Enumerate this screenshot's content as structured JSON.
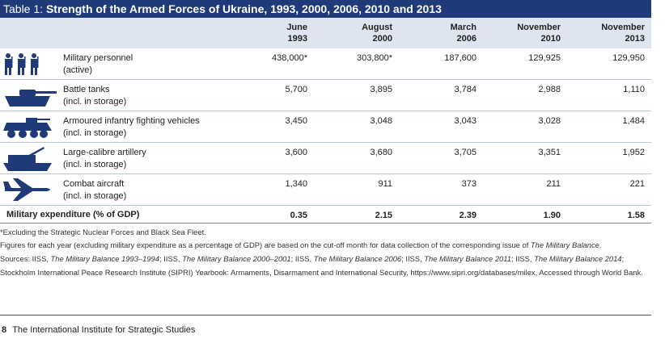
{
  "title_label": "Table 1:",
  "title": "Strength of the Armed Forces of Ukraine, 1993, 2000, 2006, 2010 and 2013",
  "columns": [
    {
      "month": "June",
      "year": "1993"
    },
    {
      "month": "August",
      "year": "2000"
    },
    {
      "month": "March",
      "year": "2006"
    },
    {
      "month": "November",
      "year": "2010"
    },
    {
      "month": "November",
      "year": "2013"
    }
  ],
  "rows": [
    {
      "label": "Military personnel",
      "sublabel": "(active)",
      "values": [
        "438,000*",
        "303,800*",
        "187,600",
        "129,925",
        "129,950"
      ]
    },
    {
      "label": "Battle tanks",
      "sublabel": "(incl. in storage)",
      "values": [
        "5,700",
        "3,895",
        "3,784",
        "2,988",
        "1,110"
      ]
    },
    {
      "label": "Armoured infantry fighting vehicles",
      "sublabel": "(incl. in storage)",
      "values": [
        "3,450",
        "3,048",
        "3,043",
        "3,028",
        "1,484"
      ]
    },
    {
      "label": "Large-calibre artillery",
      "sublabel": "(incl. in storage)",
      "values": [
        "3,600",
        "3,680",
        "3,705",
        "3,351",
        "1,952"
      ]
    },
    {
      "label": "Combat aircraft",
      "sublabel": "(incl. in storage)",
      "values": [
        "1,340",
        "911",
        "373",
        "211",
        "221"
      ]
    }
  ],
  "expenditure": {
    "label": "Military expenditure (% of GDP)",
    "values": [
      "0.35",
      "2.15",
      "2.39",
      "1.90",
      "1.58"
    ]
  },
  "notes": [
    [
      {
        "text": "*Excluding the Strategic Nuclear Forces and Black Sea Fleet."
      }
    ],
    [
      {
        "text": "Figures for each year (excluding military expenditure as a percentage of GDP) are based on the cut-off month for data collection of the corresponding issue of "
      },
      {
        "text": "The Military Balance",
        "italic": true
      },
      {
        "text": "."
      }
    ],
    [
      {
        "text": "Sources: IISS, "
      },
      {
        "text": "The Military Balance 1993–1994",
        "italic": true
      },
      {
        "text": "; IISS, "
      },
      {
        "text": "The Military Balance 2000–2001",
        "italic": true
      },
      {
        "text": "; IISS, "
      },
      {
        "text": "The Military Balance 2006",
        "italic": true
      },
      {
        "text": "; IISS, "
      },
      {
        "text": "The Military Balance 2011",
        "italic": true
      },
      {
        "text": "; IISS, "
      },
      {
        "text": "The Military Balance 2014",
        "italic": true
      },
      {
        "text": "; Stockholm International Peace Research Institute (SIPRI) Yearbook: Armaments, Disarmament and International Security, https://www.sipri.org/databases/milex, Accessed through World Bank."
      }
    ]
  ],
  "footer": {
    "page": "8",
    "text": "The International Institute for Strategic Studies"
  }
}
